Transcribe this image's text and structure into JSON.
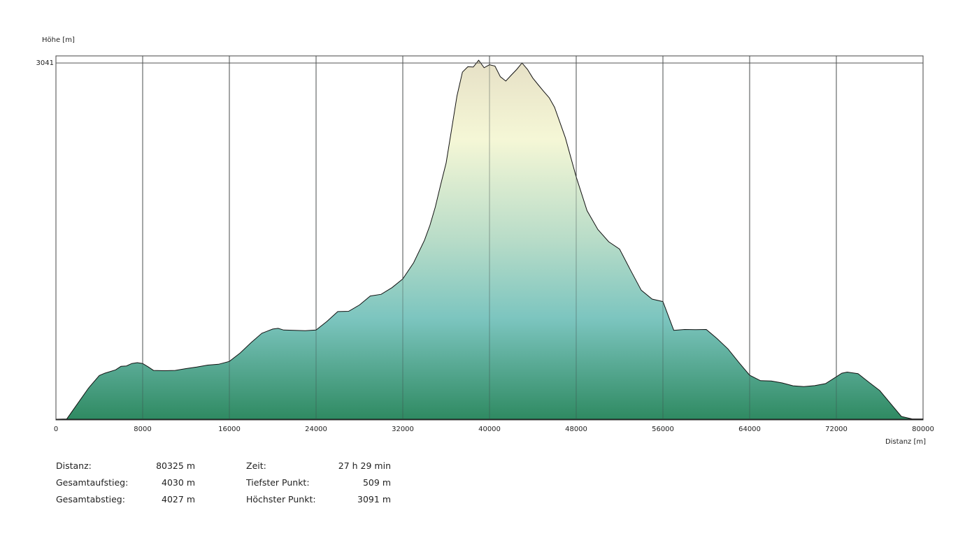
{
  "chart_data": {
    "type": "area",
    "ylabel": "Höhe [m]",
    "xlabel": "Distanz [m]",
    "xlim": [
      0,
      80000
    ],
    "ylim": [
      509,
      3091
    ],
    "y_marker": 3041,
    "y_marker_label": "3041",
    "x_ticks": [
      0,
      8000,
      16000,
      24000,
      32000,
      40000,
      48000,
      56000,
      64000,
      72000,
      80000
    ],
    "x_tick_labels": [
      "0",
      "8000",
      "16000",
      "24000",
      "32000",
      "40000",
      "48000",
      "56000",
      "64000",
      "72000",
      "80000"
    ],
    "grid": "vertical",
    "gradient_colors": [
      "#2e8a62",
      "#7cc6c0",
      "#f4f6d4",
      "#e8e2c6"
    ],
    "x": [
      0,
      1000,
      2000,
      3000,
      4000,
      4500,
      5500,
      6000,
      6500,
      7000,
      7500,
      8000,
      8500,
      9000,
      10000,
      11000,
      12000,
      13000,
      14000,
      15000,
      16000,
      17000,
      18000,
      19000,
      20000,
      20500,
      21000,
      22000,
      23000,
      24000,
      25000,
      26000,
      27000,
      28000,
      29000,
      30000,
      31000,
      32000,
      33000,
      34000,
      34500,
      35000,
      35500,
      36000,
      36500,
      37000,
      37500,
      38000,
      38500,
      39000,
      39500,
      40000,
      40500,
      41000,
      41500,
      42000,
      42500,
      43000,
      43500,
      44000,
      44500,
      45000,
      45500,
      46000,
      47000,
      48000,
      49000,
      50000,
      51000,
      52000,
      53000,
      54000,
      55000,
      56000,
      57000,
      58000,
      59000,
      60000,
      61000,
      62000,
      63000,
      64000,
      65000,
      66000,
      67000,
      68000,
      69000,
      70000,
      71000,
      72000,
      72500,
      73000,
      74000,
      75000,
      76000,
      77000,
      78000,
      79000,
      80000,
      80325
    ],
    "y": [
      509,
      511,
      620,
      730,
      820,
      836,
      860,
      885,
      888,
      905,
      911,
      905,
      882,
      856,
      854,
      856,
      869,
      880,
      894,
      900,
      920,
      980,
      1053,
      1120,
      1150,
      1155,
      1143,
      1141,
      1138,
      1143,
      1204,
      1274,
      1276,
      1321,
      1385,
      1397,
      1444,
      1506,
      1621,
      1781,
      1887,
      2017,
      2179,
      2331,
      2569,
      2807,
      2976,
      3014,
      3012,
      3060,
      3007,
      3028,
      3019,
      2943,
      2912,
      2954,
      2994,
      3041,
      2995,
      2933,
      2885,
      2839,
      2794,
      2726,
      2509,
      2231,
      1991,
      1857,
      1770,
      1718,
      1570,
      1426,
      1363,
      1345,
      1141,
      1147,
      1146,
      1147,
      1082,
      1009,
      913,
      822,
      783,
      781,
      767,
      747,
      741,
      748,
      762,
      811,
      836,
      844,
      833,
      772,
      713,
      621,
      529,
      511,
      511,
      509
    ]
  },
  "stats": {
    "left": [
      {
        "label": "Distanz:",
        "value": "80325 m"
      },
      {
        "label": "Gesamtaufstieg:",
        "value": "4030 m"
      },
      {
        "label": "Gesamtabstieg:",
        "value": "4027 m"
      }
    ],
    "right": [
      {
        "label": "Zeit:",
        "value": "27 h 29 min"
      },
      {
        "label": "Tiefster Punkt:",
        "value": "509 m"
      },
      {
        "label": "Höchster Punkt:",
        "value": "3091 m"
      }
    ]
  }
}
